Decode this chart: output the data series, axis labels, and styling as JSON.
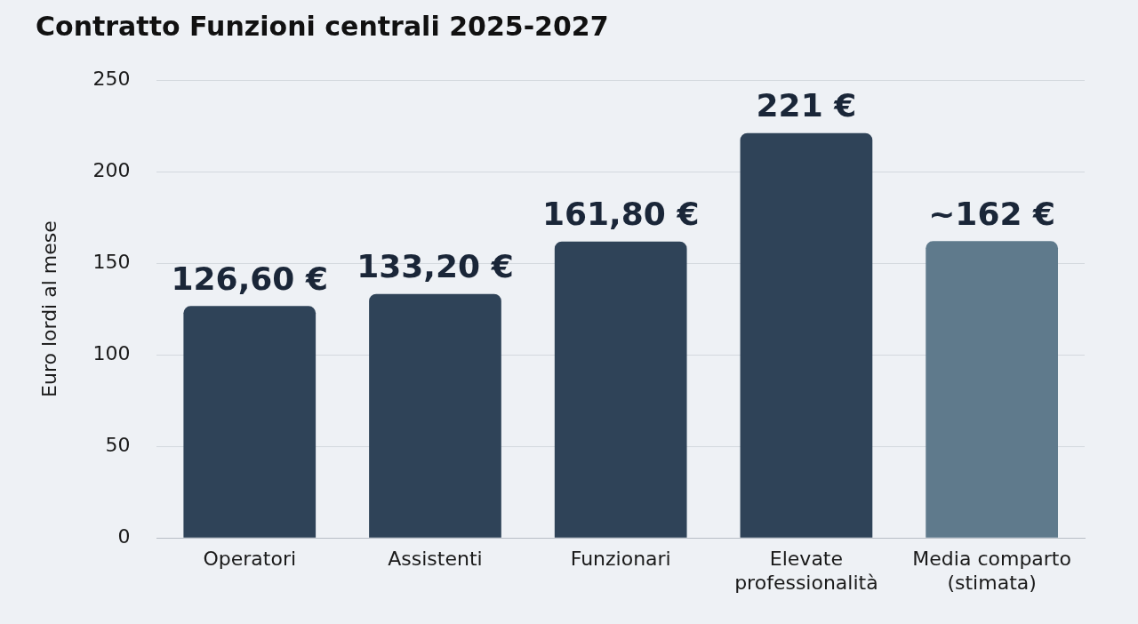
{
  "chart_data": {
    "type": "bar",
    "title": "Contratto Funzioni centrali 2025-2027",
    "ylabel": "Euro lordi al mese",
    "categories": [
      "Operatori",
      "Assistenti",
      "Funzionari",
      "Elevate professionalità",
      "Media comparto (stimata)"
    ],
    "values": [
      126.6,
      133.2,
      161.8,
      221,
      162
    ],
    "colors": [
      "#2f4358",
      "#2f4358",
      "#2f4358",
      "#2f4358",
      "#5f7a8c"
    ],
    "value_labels": [
      "126,60 €",
      "133,20 €",
      "161,80 €",
      "221 €",
      "~162 €"
    ],
    "ylim": [
      0,
      250
    ],
    "yticks": [
      0,
      50,
      100,
      150,
      200,
      250
    ],
    "grid": "y",
    "legend": false
  }
}
